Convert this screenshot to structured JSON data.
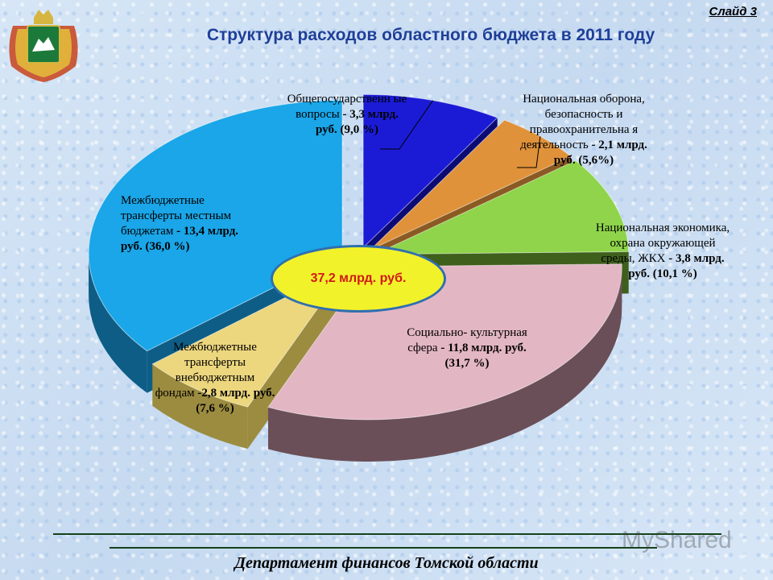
{
  "slide_label": "Слайд 3",
  "footer": "Департамент финансов Томской области",
  "watermark_text": "MyShared",
  "chart_data": {
    "type": "pie",
    "title": "Структура расходов областного бюджета в 2011 году",
    "total_label": "37,2 млрд. руб.",
    "unit": "млрд. руб.",
    "slices": [
      {
        "name": "Общегосударственные вопросы",
        "value": 3.3,
        "percent": 9.0,
        "label_text": "Общегосударственн ые вопросы",
        "value_text": "- 3,3 млрд. руб. (9,0 %)",
        "color": "#1b1bd6",
        "dark": "#0b0b73"
      },
      {
        "name": "Национальная оборона, безопасность и правоохранительная деятельность",
        "value": 2.1,
        "percent": 5.6,
        "label_text": "Национальная оборона, безопасность и правоохранительна я деятельность",
        "value_text": "- 2,1 млрд. руб. (5,6%)",
        "color": "#e0923a",
        "dark": "#8a5a22"
      },
      {
        "name": "Национальная экономика, охрана окружающей среды, ЖКХ",
        "value": 3.8,
        "percent": 10.1,
        "label_text": "Национальная экономика, охрана окружающей среды, ЖКХ",
        "value_text": "- 3,8 млрд. руб. (10,1 %)",
        "color": "#8fd44a",
        "dark": "#3f5f1c"
      },
      {
        "name": "Социально-культурная сфера",
        "value": 11.8,
        "percent": 31.7,
        "label_text": "Социально- культурная сфера",
        "value_text": "- 11,8 млрд. руб. (31,7 %)",
        "color": "#e3b6c4",
        "dark": "#6a4f58"
      },
      {
        "name": "Межбюджетные трансферты внебюджетным фондам",
        "value": 2.8,
        "percent": 7.6,
        "label_text": "Межбюджетные трансферты внебюджетным фондам",
        "value_text": "-2,8 млрд. руб. (7,6 %)",
        "color": "#ecd67e",
        "dark": "#9c8c40"
      },
      {
        "name": "Межбюджетные трансферты местным бюджетам",
        "value": 13.4,
        "percent": 36.0,
        "label_text": "Межбюджетные трансферты местным бюджетам",
        "value_text": "- 13,4 млрд. руб. (36,0 %)",
        "color": "#1aa6e8",
        "dark": "#0d5d86"
      }
    ]
  }
}
